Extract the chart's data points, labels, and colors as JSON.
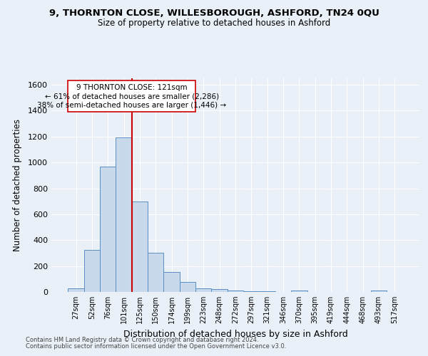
{
  "title1": "9, THORNTON CLOSE, WILLESBOROUGH, ASHFORD, TN24 0QU",
  "title2": "Size of property relative to detached houses in Ashford",
  "xlabel": "Distribution of detached houses by size in Ashford",
  "ylabel": "Number of detached properties",
  "footnote1": "Contains HM Land Registry data © Crown copyright and database right 2024.",
  "footnote2": "Contains public sector information licensed under the Open Government Licence v3.0.",
  "annotation_title": "9 THORNTON CLOSE: 121sqm",
  "annotation_line1": "← 61% of detached houses are smaller (2,286)",
  "annotation_line2": "38% of semi-detached houses are larger (1,446) →",
  "bar_labels": [
    "27sqm",
    "52sqm",
    "76sqm",
    "101sqm",
    "125sqm",
    "150sqm",
    "174sqm",
    "199sqm",
    "223sqm",
    "248sqm",
    "272sqm",
    "297sqm",
    "321sqm",
    "346sqm",
    "370sqm",
    "395sqm",
    "419sqm",
    "444sqm",
    "468sqm",
    "493sqm",
    "517sqm"
  ],
  "bar_values": [
    25,
    325,
    970,
    1195,
    700,
    305,
    155,
    75,
    30,
    20,
    12,
    8,
    8,
    0,
    12,
    0,
    0,
    0,
    0,
    12,
    0
  ],
  "bar_color": "#c9d9ec",
  "bar_edge_color": "#5a8fc3",
  "vline_color": "#cc0000",
  "ylim": [
    0,
    1650
  ],
  "yticks": [
    0,
    200,
    400,
    600,
    800,
    1000,
    1200,
    1400,
    1600
  ],
  "bg_color": "#eaf0f8",
  "axes_bg_color": "#eaf0f8",
  "grid_color": "#ffffff"
}
